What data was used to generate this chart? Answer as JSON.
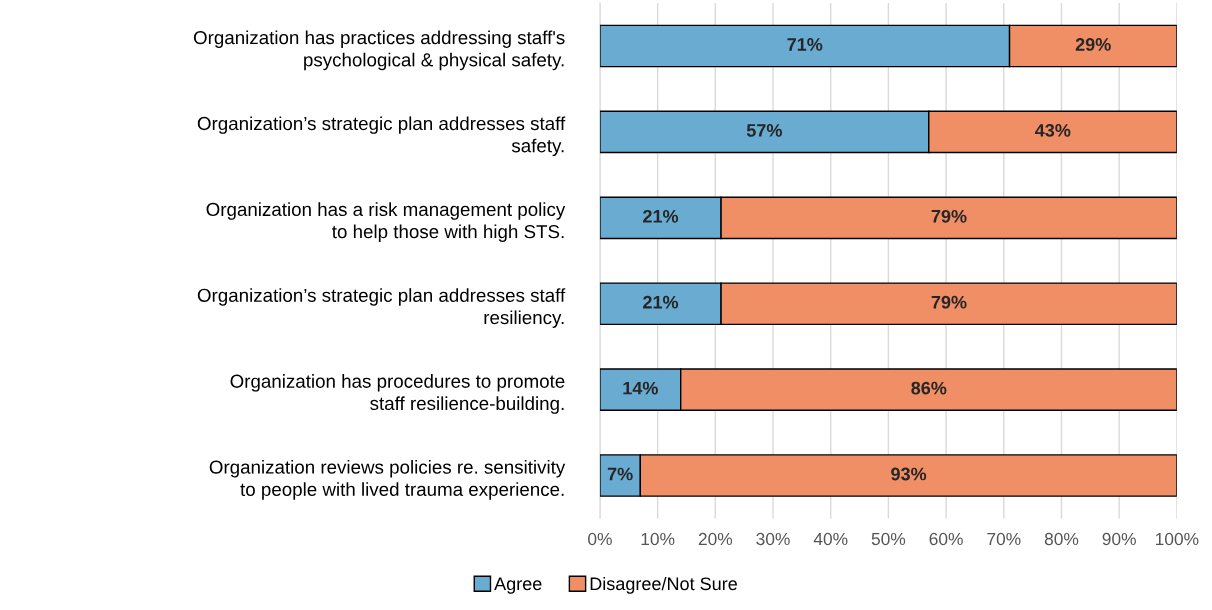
{
  "chart_data": {
    "type": "bar",
    "orientation": "horizontal",
    "stacked": true,
    "categories": [
      "Organization has practices addressing staff's\npsychological & physical safety.",
      "Organization’s strategic plan addresses staff\nsafety.",
      "Organization has a risk management policy\nto help those with high STS.",
      "Organization’s strategic plan addresses staff\nresiliency.",
      "Organization has procedures to promote\nstaff resilience-building.",
      "Organization reviews policies re. sensitivity\nto people with lived trauma experience."
    ],
    "series": [
      {
        "name": "Agree",
        "color": "#6aabd2",
        "values": [
          71,
          57,
          21,
          21,
          14,
          7
        ],
        "value_labels": [
          "71%",
          "57%",
          "21%",
          "21%",
          "14%",
          "7%"
        ]
      },
      {
        "name": "Disagree/Not Sure",
        "color": "#f08e66",
        "values": [
          29,
          43,
          79,
          79,
          86,
          93
        ],
        "value_labels": [
          "29%",
          "43%",
          "79%",
          "79%",
          "86%",
          "93%"
        ]
      }
    ],
    "xlim": [
      0,
      100
    ],
    "xticks": [
      {
        "value": 0,
        "label": "0%"
      },
      {
        "value": 10,
        "label": "10%"
      },
      {
        "value": 20,
        "label": "20%"
      },
      {
        "value": 30,
        "label": "30%"
      },
      {
        "value": 40,
        "label": "40%"
      },
      {
        "value": 50,
        "label": "50%"
      },
      {
        "value": 60,
        "label": "60%"
      },
      {
        "value": 70,
        "label": "70%"
      },
      {
        "value": 80,
        "label": "80%"
      },
      {
        "value": 90,
        "label": "90%"
      },
      {
        "value": 100,
        "label": "100%"
      }
    ],
    "grid": "x",
    "legend": "bottom"
  }
}
